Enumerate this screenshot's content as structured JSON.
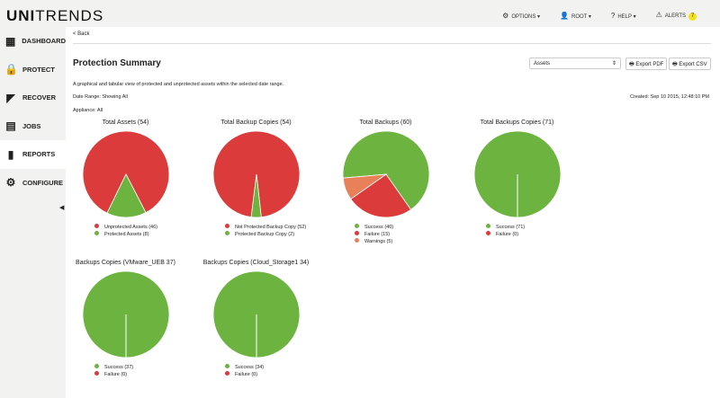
{
  "logo": "UNITRENDS",
  "topnav": [
    {
      "icon": "options-icon",
      "label": "OPTIONS ▾"
    },
    {
      "icon": "user-icon",
      "label": "ROOT ▾"
    },
    {
      "icon": "help-icon",
      "label": "HELP ▾"
    },
    {
      "icon": "alert-icon",
      "label": "ALERTS",
      "badge": "7"
    }
  ],
  "sidebar": [
    {
      "label": "DASHBOARD",
      "icon": "dashboard-icon"
    },
    {
      "label": "PROTECT",
      "icon": "lock-icon"
    },
    {
      "label": "RECOVER",
      "icon": "recover-icon"
    },
    {
      "label": "JOBS",
      "icon": "jobs-icon"
    },
    {
      "label": "REPORTS",
      "icon": "reports-icon",
      "active": true
    },
    {
      "label": "CONFIGURE",
      "icon": "gear-icon"
    }
  ],
  "main": {
    "back": "< Back",
    "title": "Protection Summary",
    "select": "Assets",
    "export_pdf": "Export PDF",
    "export_csv": "Export CSV",
    "description": "A graphical and tabular view of protected and unprotected assets within the selected date range.",
    "date_range": "Date Range: Showing All",
    "created": "Created: Sep 10 2015, 12:48:10 PM",
    "appliance": "Appliance: All"
  },
  "colors": {
    "success": "#6db33f",
    "failure": "#dc3b3b",
    "warning": "#e8805a"
  },
  "chart_data": [
    {
      "type": "pie",
      "title": "Total Assets (54)",
      "slices": [
        {
          "label": "Unprotected Assets (46)",
          "value": 46,
          "color": "#dc3b3b"
        },
        {
          "label": "Protected Assets (8)",
          "value": 8,
          "color": "#6db33f"
        }
      ]
    },
    {
      "type": "pie",
      "title": "Total Backup Copies (54)",
      "slices": [
        {
          "label": "Not Protected Backup Copy (52)",
          "value": 52,
          "color": "#dc3b3b"
        },
        {
          "label": "Protected Backup Copy (2)",
          "value": 2,
          "color": "#6db33f"
        }
      ]
    },
    {
      "type": "pie",
      "title": "Total Backups (60)",
      "slices": [
        {
          "label": "Success (40)",
          "value": 40,
          "color": "#6db33f"
        },
        {
          "label": "Failure (15)",
          "value": 15,
          "color": "#dc3b3b"
        },
        {
          "label": "Warnings (5)",
          "value": 5,
          "color": "#e8805a"
        }
      ]
    },
    {
      "type": "pie",
      "title": "Total Backups Copies (71)",
      "slices": [
        {
          "label": "Success (71)",
          "value": 71,
          "color": "#6db33f"
        },
        {
          "label": "Failure (0)",
          "value": 0,
          "color": "#dc3b3b"
        }
      ]
    },
    {
      "type": "pie",
      "title": "Backups Copies (VMware_UEB 37)",
      "slices": [
        {
          "label": "Success (37)",
          "value": 37,
          "color": "#6db33f"
        },
        {
          "label": "Failure (0)",
          "value": 0,
          "color": "#dc3b3b"
        }
      ]
    },
    {
      "type": "pie",
      "title": "Backups Copies (Cloud_Storage1 34)",
      "slices": [
        {
          "label": "Success (34)",
          "value": 34,
          "color": "#6db33f"
        },
        {
          "label": "Failure (0)",
          "value": 0,
          "color": "#dc3b3b"
        }
      ]
    }
  ]
}
